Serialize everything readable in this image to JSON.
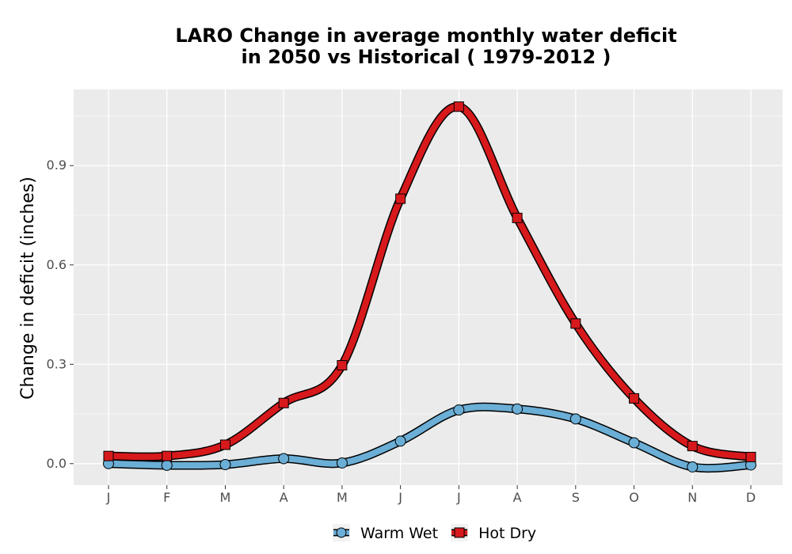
{
  "chart_data": {
    "type": "line",
    "title_line1": "LARO  Change in average monthly water deficit",
    "title_line2": "in 2050 vs Historical ( 1979-2012 )",
    "xlabel": "",
    "ylabel": "Change in deficit (inches)",
    "categories": [
      "J",
      "F",
      "M",
      "A",
      "M",
      "J",
      "J",
      "A",
      "S",
      "O",
      "N",
      "D"
    ],
    "yticks": [
      0.0,
      0.3,
      0.6,
      0.9
    ],
    "ytick_labels": [
      "0.0",
      "0.3",
      "0.6",
      "0.9"
    ],
    "ylim": [
      -0.065,
      1.13
    ],
    "grid": true,
    "legend_position": "bottom",
    "series": [
      {
        "name": "Warm Wet",
        "color": "#6baed6",
        "marker": "circle",
        "values": [
          0.0,
          -0.005,
          -0.003,
          0.015,
          0.002,
          0.068,
          0.162,
          0.165,
          0.135,
          0.063,
          -0.01,
          -0.004
        ]
      },
      {
        "name": "Hot Dry",
        "color": "#d7191c",
        "marker": "square",
        "values": [
          0.023,
          0.023,
          0.057,
          0.183,
          0.297,
          0.8,
          1.078,
          0.742,
          0.423,
          0.197,
          0.053,
          0.02
        ]
      }
    ]
  }
}
